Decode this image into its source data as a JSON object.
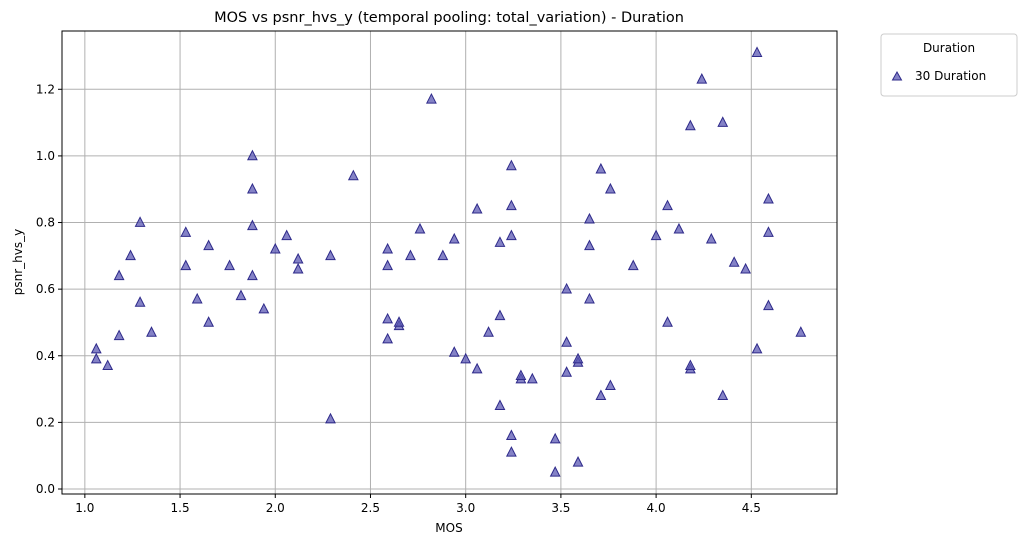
{
  "chart_data": {
    "type": "scatter",
    "title": "MOS vs psnr_hvs_y (temporal pooling: total_variation) - Duration",
    "xlabel": "MOS",
    "ylabel": "psnr_hvs_y",
    "xlim": [
      0.88,
      4.95
    ],
    "ylim": [
      -0.015,
      1.375
    ],
    "xticks": [
      "1.0",
      "1.5",
      "2.0",
      "2.5",
      "3.0",
      "3.5",
      "4.0",
      "4.5"
    ],
    "yticks": [
      "0.0",
      "0.2",
      "0.4",
      "0.6",
      "0.8",
      "1.0",
      "1.2"
    ],
    "grid": true,
    "legend": {
      "title": "Duration",
      "placement": "outside-top-right"
    },
    "marker": "triangle",
    "colors": {
      "marker_fill": "#5b58b3",
      "marker_edge": "#2e2a8a",
      "grid": "#b0b0b0"
    },
    "series": [
      {
        "name": "30 Duration",
        "points": [
          [
            1.06,
            0.39
          ],
          [
            1.06,
            0.42
          ],
          [
            1.12,
            0.37
          ],
          [
            1.18,
            0.46
          ],
          [
            1.18,
            0.64
          ],
          [
            1.24,
            0.7
          ],
          [
            1.29,
            0.56
          ],
          [
            1.29,
            0.8
          ],
          [
            1.35,
            0.47
          ],
          [
            1.53,
            0.67
          ],
          [
            1.53,
            0.77
          ],
          [
            1.59,
            0.57
          ],
          [
            1.65,
            0.5
          ],
          [
            1.65,
            0.73
          ],
          [
            1.76,
            0.67
          ],
          [
            1.82,
            0.58
          ],
          [
            1.88,
            0.64
          ],
          [
            1.88,
            0.79
          ],
          [
            1.88,
            0.9
          ],
          [
            1.88,
            1.0
          ],
          [
            1.94,
            0.54
          ],
          [
            2.0,
            0.72
          ],
          [
            2.06,
            0.76
          ],
          [
            2.12,
            0.66
          ],
          [
            2.12,
            0.69
          ],
          [
            2.29,
            0.21
          ],
          [
            2.29,
            0.7
          ],
          [
            2.41,
            0.94
          ],
          [
            2.59,
            0.45
          ],
          [
            2.59,
            0.51
          ],
          [
            2.59,
            0.67
          ],
          [
            2.59,
            0.72
          ],
          [
            2.65,
            0.49
          ],
          [
            2.65,
            0.5
          ],
          [
            2.71,
            0.7
          ],
          [
            2.76,
            0.78
          ],
          [
            2.82,
            1.17
          ],
          [
            2.88,
            0.7
          ],
          [
            2.94,
            0.41
          ],
          [
            2.94,
            0.75
          ],
          [
            3.0,
            0.39
          ],
          [
            3.06,
            0.36
          ],
          [
            3.06,
            0.84
          ],
          [
            3.12,
            0.47
          ],
          [
            3.18,
            0.25
          ],
          [
            3.18,
            0.52
          ],
          [
            3.18,
            0.74
          ],
          [
            3.24,
            0.11
          ],
          [
            3.24,
            0.16
          ],
          [
            3.24,
            0.76
          ],
          [
            3.24,
            0.85
          ],
          [
            3.24,
            0.97
          ],
          [
            3.29,
            0.33
          ],
          [
            3.29,
            0.34
          ],
          [
            3.35,
            0.33
          ],
          [
            3.47,
            0.05
          ],
          [
            3.47,
            0.15
          ],
          [
            3.53,
            0.35
          ],
          [
            3.53,
            0.44
          ],
          [
            3.53,
            0.6
          ],
          [
            3.59,
            0.08
          ],
          [
            3.59,
            0.38
          ],
          [
            3.59,
            0.39
          ],
          [
            3.65,
            0.57
          ],
          [
            3.65,
            0.73
          ],
          [
            3.65,
            0.81
          ],
          [
            3.71,
            0.28
          ],
          [
            3.71,
            0.96
          ],
          [
            3.76,
            0.31
          ],
          [
            3.76,
            0.9
          ],
          [
            3.88,
            0.67
          ],
          [
            4.0,
            0.76
          ],
          [
            4.06,
            0.5
          ],
          [
            4.06,
            0.85
          ],
          [
            4.12,
            0.78
          ],
          [
            4.18,
            0.36
          ],
          [
            4.18,
            0.37
          ],
          [
            4.18,
            1.09
          ],
          [
            4.24,
            1.23
          ],
          [
            4.29,
            0.75
          ],
          [
            4.35,
            0.28
          ],
          [
            4.35,
            1.1
          ],
          [
            4.41,
            0.68
          ],
          [
            4.47,
            0.66
          ],
          [
            4.53,
            0.42
          ],
          [
            4.53,
            1.31
          ],
          [
            4.59,
            0.55
          ],
          [
            4.59,
            0.77
          ],
          [
            4.59,
            0.87
          ],
          [
            4.76,
            0.47
          ]
        ]
      }
    ]
  }
}
